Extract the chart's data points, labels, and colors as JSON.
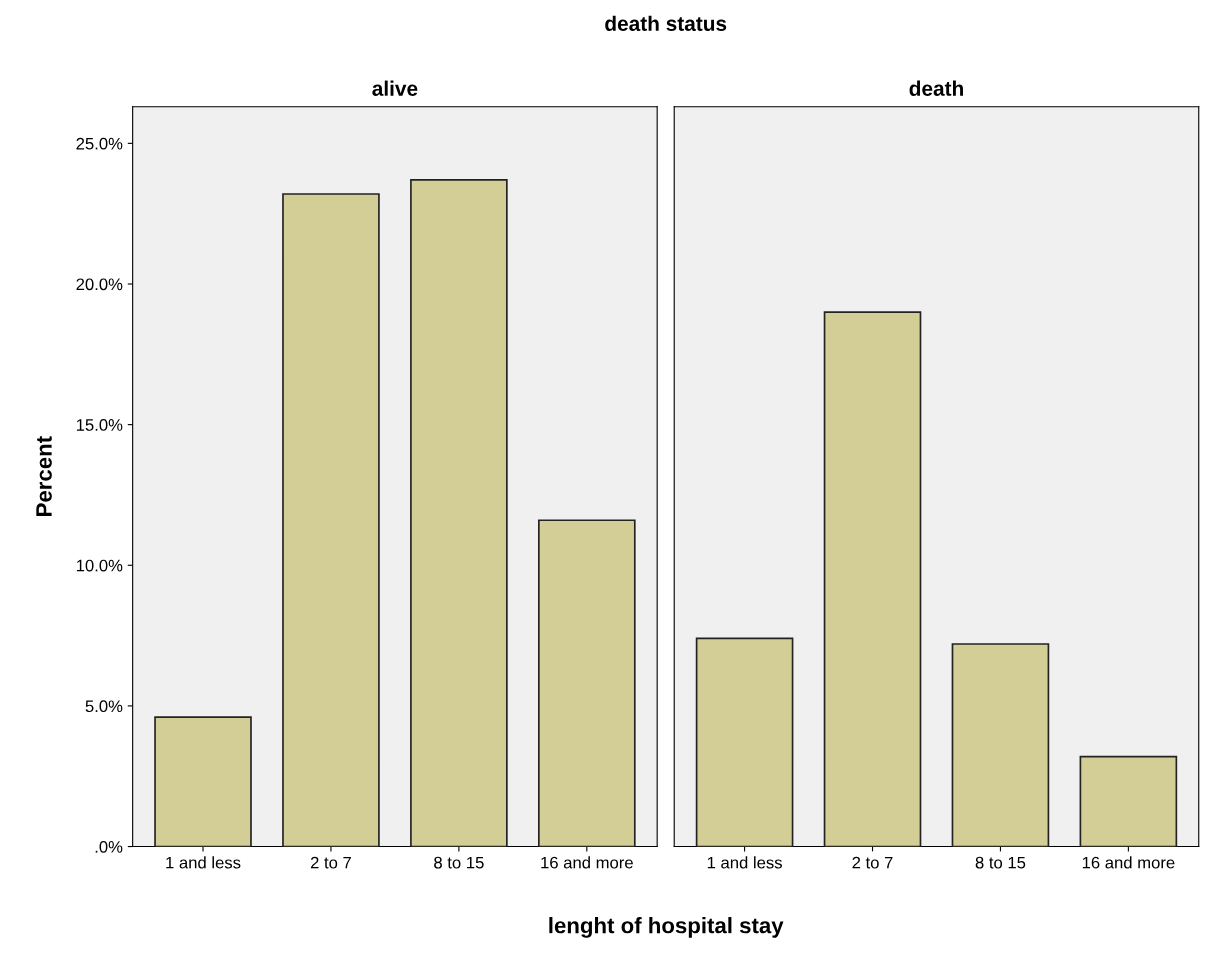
{
  "chart_data": [
    {
      "type": "bar",
      "title": "alive",
      "annotations": [
        "death status"
      ],
      "xlabel": "lenght of hospital stay",
      "ylabel": "Percent",
      "categories": [
        "1 and less",
        "2 to 7",
        "8 to 15",
        "16 and more"
      ],
      "values": [
        4.6,
        23.2,
        23.7,
        11.6
      ],
      "color": "#d3cd96",
      "ylim": [
        0,
        26.3
      ],
      "yticks": [
        {
          "value": 0,
          "label": ".0%"
        },
        {
          "value": 5,
          "label": "5.0%"
        },
        {
          "value": 10,
          "label": "10.0%"
        },
        {
          "value": 15,
          "label": "15.0%"
        },
        {
          "value": 20,
          "label": "20.0%"
        },
        {
          "value": 25,
          "label": "25.0%"
        }
      ],
      "grid": false,
      "legend": false
    },
    {
      "type": "bar",
      "title": "death",
      "categories": [
        "1 and less",
        "2 to 7",
        "8 to 15",
        "16 and more"
      ],
      "values": [
        7.4,
        19.0,
        7.2,
        3.2
      ],
      "color": "#d3cd96",
      "ylim": [
        0,
        26.3
      ],
      "tick_labels": "x",
      "grid": false,
      "legend": false
    }
  ]
}
